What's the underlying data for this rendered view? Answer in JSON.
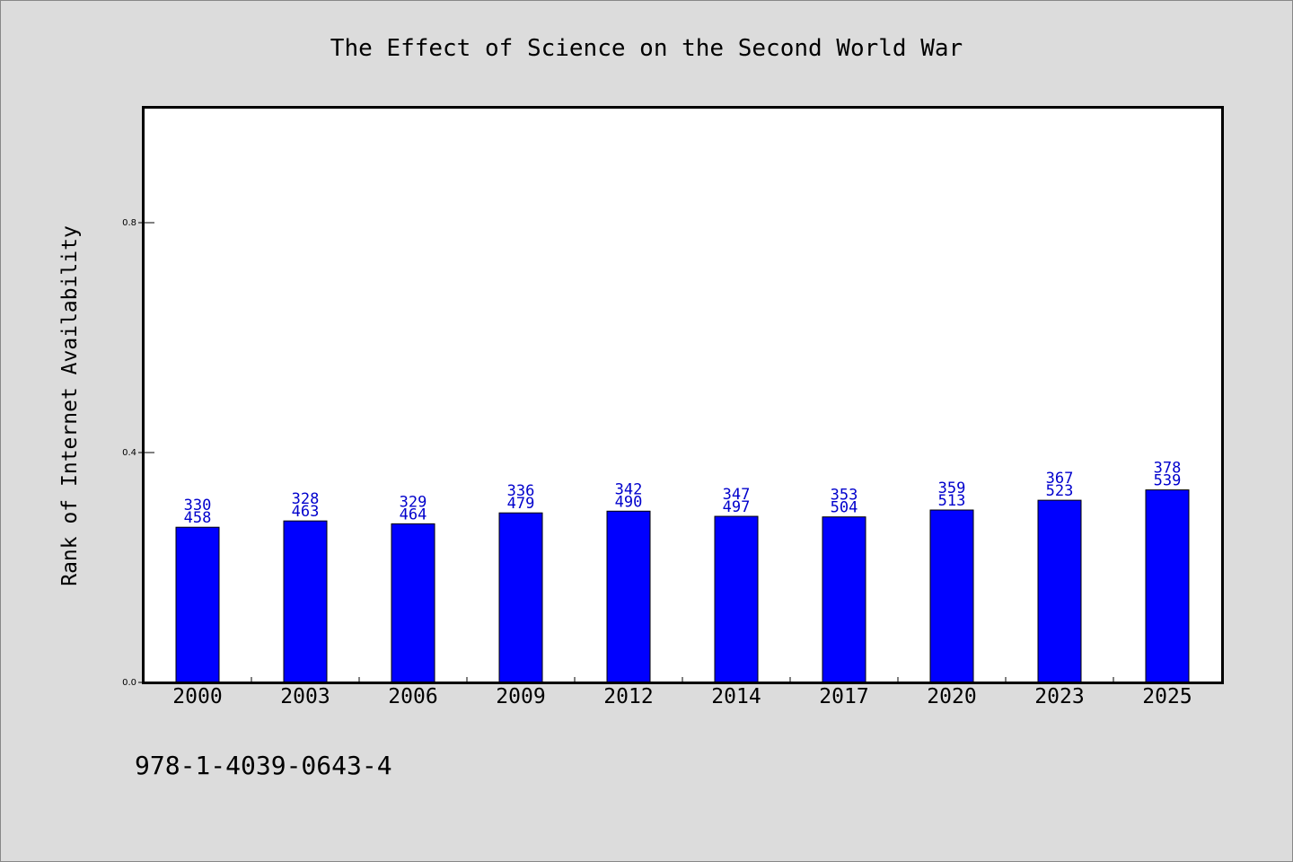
{
  "chart_data": {
    "type": "bar",
    "title": "The Effect of Science on the Second World War",
    "xlabel": "",
    "ylabel": "Rank of Internet Availability",
    "categories": [
      "2000",
      "2003",
      "2006",
      "2009",
      "2012",
      "2014",
      "2017",
      "2020",
      "2023",
      "2025"
    ],
    "values": [
      0.27,
      0.281,
      0.276,
      0.295,
      0.298,
      0.289,
      0.288,
      0.3,
      0.317,
      0.335
    ],
    "labels_top": [
      "330",
      "328",
      "329",
      "336",
      "342",
      "347",
      "353",
      "359",
      "367",
      "378"
    ],
    "labels_bottom": [
      "458",
      "463",
      "464",
      "479",
      "490",
      "497",
      "504",
      "513",
      "523",
      "539"
    ],
    "ylim": [
      0,
      1.0
    ],
    "yticks": [
      0.0,
      0.4,
      0.8
    ],
    "ytick_labels": [
      "0.0",
      "0.4",
      "0.8"
    ],
    "grid": false,
    "bar_color": "#0000ff",
    "label_color": "#0000cc"
  },
  "footer": {
    "isbn": "978-1-4039-0643-4"
  }
}
